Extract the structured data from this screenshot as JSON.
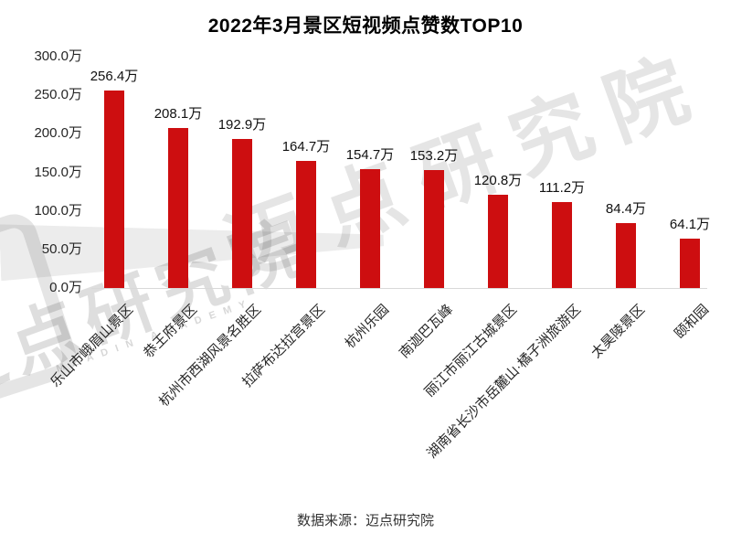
{
  "title": "2022年3月景区短视频点赞数TOP10",
  "footer": {
    "text": "数据来源：迈点研究院"
  },
  "watermark": {
    "text": "迈点研究院",
    "subtext": "MEADIN ACADEMY"
  },
  "colors": {
    "bar": "#cd0e10",
    "axis_line": "#d9d9d9",
    "text": "#262626"
  },
  "chart_data": {
    "type": "bar",
    "title": "2022年3月景区短视频点赞数TOP10",
    "unit": "万",
    "categories": [
      "乐山市峨眉山景区",
      "恭王府景区",
      "杭州市西湖风景名胜区",
      "拉萨布达拉宫景区",
      "杭州乐园",
      "南迦巴瓦峰",
      "丽江市丽江古城景区",
      "湖南省长沙市岳麓山·橘子洲旅游区",
      "太昊陵景区",
      "颐和园"
    ],
    "values": [
      256.4,
      208.1,
      192.9,
      164.7,
      154.7,
      153.2,
      120.8,
      111.2,
      84.4,
      64.1
    ],
    "value_labels": [
      "256.4万",
      "208.1万",
      "192.9万",
      "164.7万",
      "154.7万",
      "153.2万",
      "120.8万",
      "111.2万",
      "84.4万",
      "64.1万"
    ],
    "xlabel": "",
    "ylabel": "",
    "y_axis": {
      "max": 300,
      "ticks": [
        0,
        50,
        100,
        150,
        200,
        250,
        300
      ],
      "tick_labels": [
        "0.0万",
        "50.0万",
        "100.0万",
        "150.0万",
        "200.0万",
        "250.0万",
        "300.0万"
      ]
    },
    "grid": false,
    "legend": false,
    "source": "数据来源：迈点研究院"
  }
}
